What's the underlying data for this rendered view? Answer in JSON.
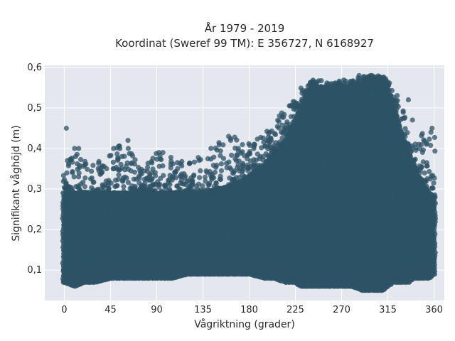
{
  "chart_data": {
    "type": "scatter",
    "title_lines": [
      "År 1979 - 2019",
      "Koordinat (Sweref 99 TM): E 356727, N 6168927"
    ],
    "xlabel": "Vågriktning (grader)",
    "ylabel": "Signifikant våghöjd (m)",
    "xlim": [
      -19,
      370
    ],
    "ylim": [
      0.025,
      0.605
    ],
    "xticks": [
      0,
      45,
      90,
      135,
      180,
      225,
      270,
      315,
      360
    ],
    "xtick_labels": [
      "0",
      "45",
      "90",
      "135",
      "180",
      "225",
      "270",
      "315",
      "360"
    ],
    "yticks": [
      0.1,
      0.2,
      0.3,
      0.4,
      0.5,
      0.6
    ],
    "ytick_labels": [
      "0,1",
      "0,2",
      "0,3",
      "0,4",
      "0,5",
      "0,6"
    ],
    "grid": true,
    "point_color": "#2d5266",
    "plot_background": "#e5e7ef",
    "envelope": {
      "x": [
        0,
        10,
        20,
        30,
        45,
        60,
        75,
        90,
        105,
        120,
        135,
        150,
        165,
        180,
        195,
        205,
        215,
        222,
        225,
        230,
        235,
        240,
        250,
        260,
        270,
        280,
        290,
        300,
        310,
        315,
        320,
        325,
        330,
        335,
        340,
        345,
        350,
        355,
        360
      ],
      "ymin": [
        0.07,
        0.06,
        0.07,
        0.07,
        0.08,
        0.08,
        0.08,
        0.08,
        0.08,
        0.09,
        0.09,
        0.09,
        0.09,
        0.09,
        0.08,
        0.08,
        0.07,
        0.07,
        0.07,
        0.06,
        0.06,
        0.06,
        0.06,
        0.06,
        0.06,
        0.06,
        0.05,
        0.05,
        0.05,
        0.06,
        0.07,
        0.07,
        0.07,
        0.07,
        0.08,
        0.08,
        0.08,
        0.08,
        0.09
      ],
      "ycore_max": [
        0.29,
        0.29,
        0.29,
        0.29,
        0.29,
        0.29,
        0.29,
        0.29,
        0.29,
        0.29,
        0.29,
        0.3,
        0.31,
        0.33,
        0.36,
        0.39,
        0.42,
        0.45,
        0.47,
        0.5,
        0.53,
        0.55,
        0.55,
        0.55,
        0.55,
        0.55,
        0.56,
        0.57,
        0.57,
        0.55,
        0.51,
        0.47,
        0.43,
        0.39,
        0.36,
        0.33,
        0.31,
        0.29,
        0.28
      ],
      "outliers_max": [
        0.36,
        0.4,
        0.37,
        0.36,
        0.4,
        0.42,
        0.35,
        0.39,
        0.38,
        0.37,
        0.39,
        0.42,
        0.43,
        0.42,
        0.44,
        0.47,
        0.5,
        0.52,
        0.53,
        0.55,
        0.56,
        0.57,
        0.57,
        0.56,
        0.57,
        0.57,
        0.58,
        0.58,
        0.58,
        0.57,
        0.55,
        0.53,
        0.5,
        0.47,
        0.45,
        0.44,
        0.45,
        0.45,
        0.43
      ]
    },
    "notable_points": [
      {
        "x": 2,
        "y": 0.45
      },
      {
        "x": 3,
        "y": 0.37
      },
      {
        "x": 10,
        "y": 0.4
      },
      {
        "x": 14,
        "y": 0.4
      },
      {
        "x": 48,
        "y": 0.4
      },
      {
        "x": 56,
        "y": 0.38
      },
      {
        "x": 62,
        "y": 0.42
      },
      {
        "x": 92,
        "y": 0.39
      },
      {
        "x": 96,
        "y": 0.39
      },
      {
        "x": 160,
        "y": 0.43
      },
      {
        "x": 162,
        "y": 0.42
      },
      {
        "x": 200,
        "y": 0.44
      },
      {
        "x": 287,
        "y": 0.58
      },
      {
        "x": 298,
        "y": 0.58
      },
      {
        "x": 339,
        "y": 0.47
      },
      {
        "x": 358,
        "y": 0.45
      },
      {
        "x": 357,
        "y": 0.44
      },
      {
        "x": 335,
        "y": 0.52
      }
    ]
  }
}
